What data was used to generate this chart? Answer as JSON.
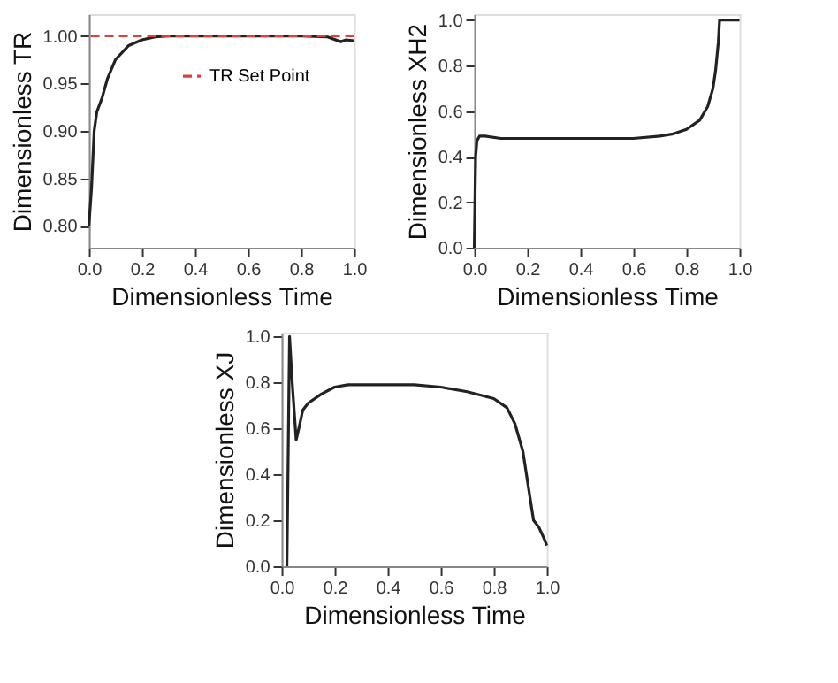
{
  "chart_data": [
    {
      "type": "line",
      "xlabel": "Dimensionless Time",
      "ylabel": "Dimensionless TR",
      "xlim": [
        0,
        1
      ],
      "ylim": [
        0.777,
        1.023
      ],
      "xticks": [
        {
          "value": 0,
          "label": "0.0"
        },
        {
          "value": 0.2,
          "label": "0.2"
        },
        {
          "value": 0.4,
          "label": "0.4"
        },
        {
          "value": 0.6,
          "label": "0.6"
        },
        {
          "value": 0.8,
          "label": "0.8"
        },
        {
          "value": 1,
          "label": "1.0"
        }
      ],
      "yticks": [
        {
          "value": 0.8,
          "label": "0.80"
        },
        {
          "value": 0.85,
          "label": "0.85"
        },
        {
          "value": 0.9,
          "label": "0.90"
        },
        {
          "value": 0.95,
          "label": "0.95"
        },
        {
          "value": 1,
          "label": "1.00"
        }
      ],
      "x": [
        0,
        0.01,
        0.02,
        0.03,
        0.05,
        0.07,
        0.1,
        0.15,
        0.2,
        0.25,
        0.3,
        0.5,
        0.8,
        0.9,
        0.95,
        0.97,
        1.0
      ],
      "series": [
        {
          "color": "#222222",
          "values": [
            0.8,
            0.84,
            0.9,
            0.92,
            0.935,
            0.955,
            0.975,
            0.99,
            0.996,
            0.999,
            1.0,
            1.0,
            1.0,
            0.999,
            0.994,
            0.996,
            0.995
          ]
        }
      ],
      "ref_lines": [
        {
          "axis": "y",
          "value": 1.0,
          "label": "TR Set Point",
          "color": "#e0403a",
          "line_style": "dashed"
        }
      ],
      "legend": "top",
      "grid": false,
      "line_style": "solid"
    },
    {
      "type": "line",
      "xlabel": "Dimensionless Time",
      "ylabel": "Dimensionless XH2",
      "xlim": [
        0,
        1
      ],
      "ylim": [
        0,
        1.026
      ],
      "xticks": [
        {
          "value": 0,
          "label": "0.0"
        },
        {
          "value": 0.2,
          "label": "0.2"
        },
        {
          "value": 0.4,
          "label": "0.4"
        },
        {
          "value": 0.6,
          "label": "0.6"
        },
        {
          "value": 0.8,
          "label": "0.8"
        },
        {
          "value": 1,
          "label": "1.0"
        }
      ],
      "yticks": [
        {
          "value": 0,
          "label": "0.0"
        },
        {
          "value": 0.2,
          "label": "0.2"
        },
        {
          "value": 0.4,
          "label": "0.4"
        },
        {
          "value": 0.6,
          "label": "0.6"
        },
        {
          "value": 0.8,
          "label": "0.8"
        },
        {
          "value": 1,
          "label": "1.0"
        }
      ],
      "x": [
        0,
        0.005,
        0.01,
        0.02,
        0.04,
        0.1,
        0.4,
        0.6,
        0.7,
        0.75,
        0.8,
        0.85,
        0.88,
        0.9,
        0.91,
        0.92,
        0.925,
        1.0
      ],
      "series": [
        {
          "color": "#222222",
          "values": [
            0,
            0.4,
            0.47,
            0.49,
            0.49,
            0.48,
            0.48,
            0.48,
            0.49,
            0.5,
            0.52,
            0.56,
            0.62,
            0.7,
            0.78,
            0.9,
            1.0,
            1.0
          ]
        }
      ],
      "grid": false,
      "line_style": "solid"
    },
    {
      "type": "line",
      "xlabel": "Dimensionless Time",
      "ylabel": "Dimensionless XJ",
      "xlim": [
        0,
        1
      ],
      "ylim": [
        0,
        1.017
      ],
      "xticks": [
        {
          "value": 0,
          "label": "0.0"
        },
        {
          "value": 0.2,
          "label": "0.2"
        },
        {
          "value": 0.4,
          "label": "0.4"
        },
        {
          "value": 0.6,
          "label": "0.6"
        },
        {
          "value": 0.8,
          "label": "0.8"
        },
        {
          "value": 1,
          "label": "1.0"
        }
      ],
      "yticks": [
        {
          "value": 0,
          "label": "0.0"
        },
        {
          "value": 0.2,
          "label": "0.2"
        },
        {
          "value": 0.4,
          "label": "0.4"
        },
        {
          "value": 0.6,
          "label": "0.6"
        },
        {
          "value": 0.8,
          "label": "0.8"
        },
        {
          "value": 1,
          "label": "1.0"
        }
      ],
      "x": [
        0.02,
        0.025,
        0.03,
        0.04,
        0.055,
        0.065,
        0.08,
        0.1,
        0.15,
        0.2,
        0.25,
        0.4,
        0.5,
        0.6,
        0.7,
        0.8,
        0.85,
        0.88,
        0.91,
        0.93,
        0.95,
        0.97,
        0.99,
        1.0
      ],
      "series": [
        {
          "color": "#222222",
          "values": [
            0,
            0.5,
            1.0,
            0.8,
            0.55,
            0.6,
            0.68,
            0.71,
            0.75,
            0.78,
            0.79,
            0.79,
            0.79,
            0.78,
            0.76,
            0.73,
            0.69,
            0.62,
            0.5,
            0.35,
            0.2,
            0.17,
            0.12,
            0.09
          ]
        }
      ],
      "grid": false,
      "line_style": "solid"
    }
  ]
}
